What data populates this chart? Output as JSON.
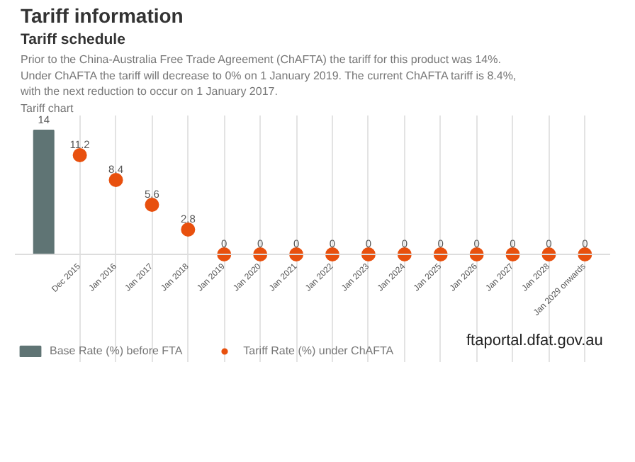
{
  "chart_data": {
    "type": "bar",
    "title": "Tariff information",
    "subtitle": "Tariff schedule",
    "annotations": [
      "Prior to the China-Australia Free Trade Agreement (ChAFTA) the tariff for this product was 14%. Under ChAFTA the tariff will decrease to 0% on 1 January 2019. The current ChAFTA tariff is 8.4%, with the next reduction to occur on 1 January 2017.",
      "Tariff chart",
      "ftaportal.dfat.gov.au"
    ],
    "categories": [
      null,
      "Dec 2015",
      "Jan 2016",
      "Jan 2017",
      "Jan 2018",
      "Jan 2019",
      "Jan 2020",
      "Jan 2021",
      "Jan 2022",
      "Jan 2023",
      "Jan 2024",
      "Jan 2025",
      "Jan 2026",
      "Jan 2027",
      "Jan 2028",
      "Jan 2029 onwards"
    ],
    "series": [
      {
        "name": "Base Rate (%) before FTA",
        "color": "#5f7474",
        "values": [
          14,
          null,
          null,
          null,
          null,
          null,
          null,
          null,
          null,
          null,
          null,
          null,
          null,
          null,
          null,
          null
        ]
      },
      {
        "name": "Tariff Rate (%) under ChAFTA",
        "type": "scatter",
        "color": "#e8500e",
        "values": [
          null,
          11.2,
          8.4,
          5.6,
          2.8,
          0,
          0,
          0,
          0,
          0,
          0,
          0,
          0,
          0,
          0,
          0
        ]
      }
    ],
    "data_labels": true,
    "grid": "x",
    "legend": "bottom",
    "marker": "circle"
  }
}
